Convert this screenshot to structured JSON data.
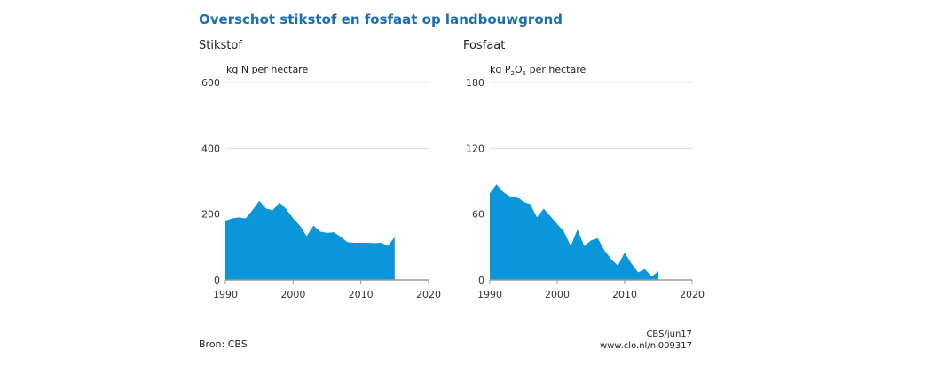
{
  "title": "Overschot stikstof en fosfaat op landbouwgrond",
  "source": "Bron: CBS",
  "credit": "CBS/jun17",
  "url": "www.clo.nl/nl009317",
  "chart_data": [
    {
      "type": "area",
      "title": "Stikstof",
      "ylabel": "kg N per hectare",
      "color": "#0a96d8",
      "x": [
        1990,
        1991,
        1992,
        1993,
        1994,
        1995,
        1996,
        1997,
        1998,
        1999,
        2000,
        2001,
        2002,
        2003,
        2004,
        2005,
        2006,
        2007,
        2008,
        2009,
        2010,
        2011,
        2012,
        2013,
        2014,
        2015
      ],
      "values": [
        180,
        187,
        190,
        187,
        212,
        240,
        217,
        212,
        235,
        215,
        187,
        165,
        133,
        165,
        147,
        143,
        145,
        132,
        115,
        113,
        113,
        113,
        112,
        113,
        104,
        130
      ],
      "xlim": [
        1990,
        2020
      ],
      "ylim": [
        0,
        600
      ],
      "yticks": [
        "0",
        "200",
        "400",
        "600"
      ],
      "xticks": [
        "1990",
        "2000",
        "2010",
        "2020"
      ]
    },
    {
      "type": "area",
      "title": "Fosfaat",
      "ylabel": "kg P2O5 per hectare",
      "color": "#0a96d8",
      "x": [
        1990,
        1991,
        1992,
        1993,
        1994,
        1995,
        1996,
        1997,
        1998,
        1999,
        2000,
        2001,
        2002,
        2003,
        2004,
        2005,
        2006,
        2007,
        2008,
        2009,
        2010,
        2011,
        2012,
        2013,
        2014,
        2015
      ],
      "values": [
        79,
        87,
        80,
        76,
        76,
        71,
        69,
        57,
        65,
        58,
        51,
        44,
        31,
        46,
        31,
        36,
        38,
        27,
        19,
        13,
        25,
        15,
        7,
        10,
        3,
        8
      ],
      "xlim": [
        1990,
        2020
      ],
      "ylim": [
        0,
        180
      ],
      "yticks": [
        "0",
        "60",
        "120",
        "180"
      ],
      "xticks": [
        "1990",
        "2000",
        "2010",
        "2020"
      ]
    }
  ]
}
